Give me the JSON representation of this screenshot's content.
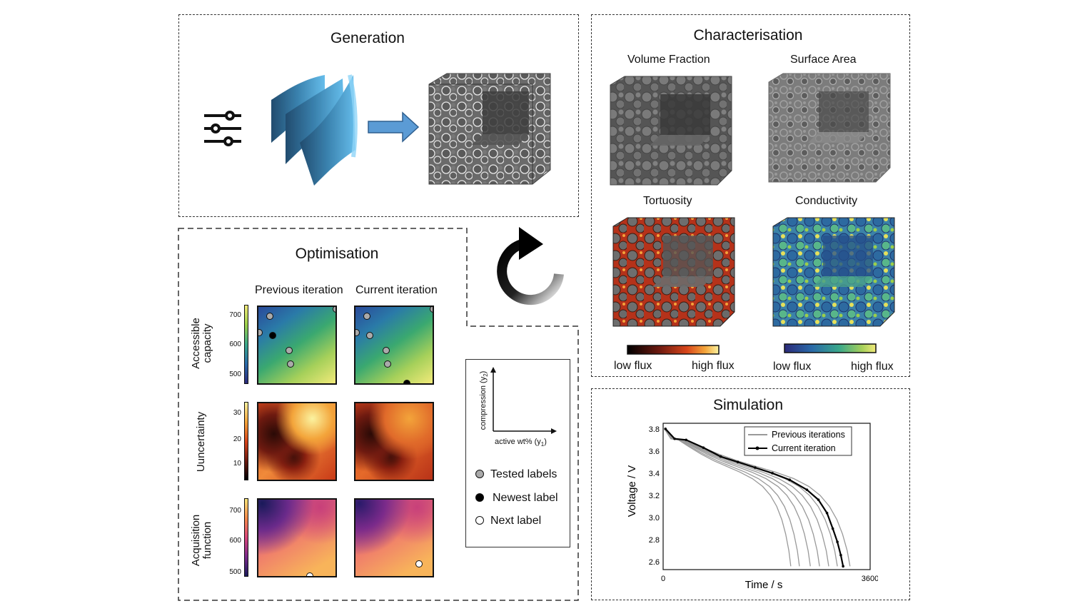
{
  "generation": {
    "title": "Generation"
  },
  "characterisation": {
    "title": "Characterisation",
    "volume_fraction": "Volume Fraction",
    "surface_area": "Surface Area",
    "tortuosity": "Tortuosity",
    "conductivity": "Conductivity",
    "low_flux_1": "low flux",
    "high_flux_1": "high flux",
    "low_flux_2": "low flux",
    "high_flux_2": "high flux"
  },
  "optimisation": {
    "title": "Optimisation",
    "col_previous": "Previous iteration",
    "col_current": "Current iteration",
    "row_labels": {
      "capacity": "Accessible capacity",
      "uncertainty": "Uuncertainty",
      "acquisition": "Acquisition function"
    },
    "ticks": {
      "capacity": [
        "700",
        "600",
        "500"
      ],
      "uncertainty": [
        "30",
        "20",
        "10"
      ],
      "acquisition": [
        "700",
        "600",
        "500"
      ]
    },
    "axes": {
      "y_label": "compression (y",
      "y_sub": "2",
      "x_label": "active wt% (y",
      "x_sub": "1"
    },
    "legend": {
      "tested": "Tested labels",
      "newest": "Newest label",
      "next": "Next label"
    }
  },
  "simulation": {
    "title": "Simulation",
    "chart_data": {
      "type": "line",
      "xlabel": "Time / s",
      "ylabel": "Voltage / V",
      "xticks": [
        "0",
        "3600"
      ],
      "yticks": [
        "3.8",
        "3.6",
        "3.4",
        "3.2",
        "3.0",
        "2.8",
        "2.6"
      ],
      "xlim": [
        0,
        3600
      ],
      "ylim": [
        2.53,
        3.85
      ],
      "legend_position": "top-right",
      "series": [
        {
          "name": "Previous iterations",
          "color": "#999999",
          "end_times": [
            2220,
            2370,
            2560,
            2720,
            2880,
            3030,
            3250
          ]
        },
        {
          "name": "Current iteration",
          "color": "#000000",
          "end_time": 3130,
          "x": [
            40,
            200,
            400,
            700,
            1000,
            1300,
            1600,
            1900,
            2200,
            2500,
            2700,
            2850,
            2950,
            3030,
            3090,
            3130
          ],
          "y": [
            3.8,
            3.71,
            3.7,
            3.63,
            3.55,
            3.5,
            3.45,
            3.4,
            3.34,
            3.25,
            3.16,
            3.04,
            2.9,
            2.78,
            2.66,
            2.56
          ]
        }
      ]
    }
  }
}
